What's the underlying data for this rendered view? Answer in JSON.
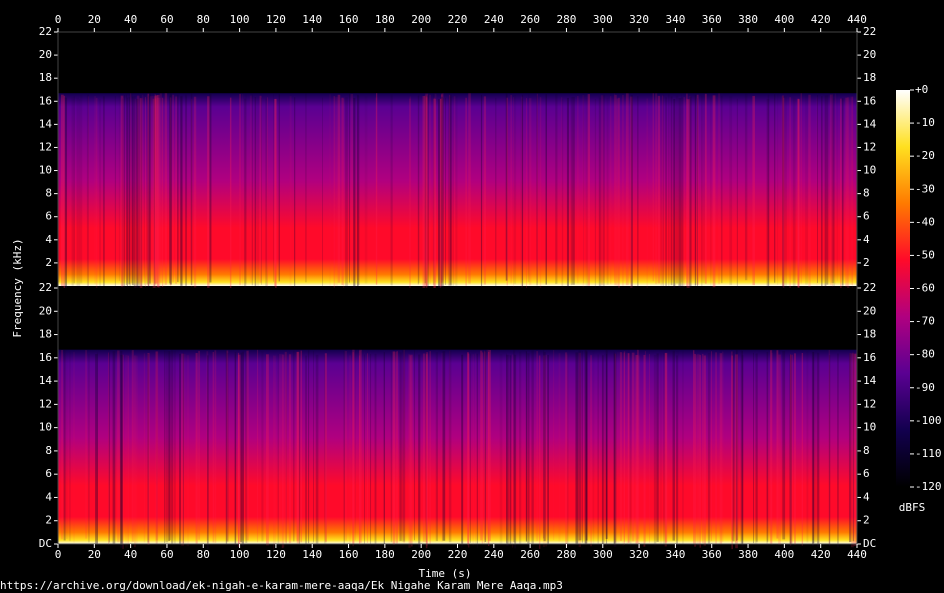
{
  "footer": "https://archive.org/download/ek-nigah-e-karam-mere-aaqa/Ek Nigahe Karam Mere Aaqa.mp3",
  "chart_data": {
    "type": "spectrogram",
    "xlabel": "Time (s)",
    "ylabel": "Frequency (kHz)",
    "xlim": [
      0,
      440
    ],
    "xticks": [
      0,
      20,
      40,
      60,
      80,
      100,
      120,
      140,
      160,
      180,
      200,
      220,
      240,
      260,
      280,
      300,
      320,
      340,
      360,
      380,
      400,
      420,
      440
    ],
    "cutoff": 16.7,
    "colormap": [
      "#000000",
      "#12004e",
      "#5a0092",
      "#b00080",
      "#ff0a2a",
      "#ff7a00",
      "#ffe020",
      "#ffffff"
    ],
    "channels": [
      {
        "ylim": [
          0,
          22
        ],
        "yticks": [
          2,
          4,
          6,
          8,
          10,
          12,
          14,
          16,
          18,
          20,
          22
        ]
      },
      {
        "ylim": [
          0,
          22
        ],
        "yticks": [
          {
            "value": 0,
            "label": "DC"
          },
          2,
          4,
          6,
          8,
          10,
          12,
          14,
          16,
          18,
          20,
          22
        ]
      }
    ],
    "colorbar": {
      "label": "dBFS",
      "lim": [
        -120,
        0
      ],
      "ticks": [
        {
          "value": 0,
          "label": "+0"
        },
        -10,
        -20,
        -30,
        -40,
        -50,
        -60,
        -70,
        -80,
        -90,
        -100,
        -110,
        -120
      ]
    }
  }
}
